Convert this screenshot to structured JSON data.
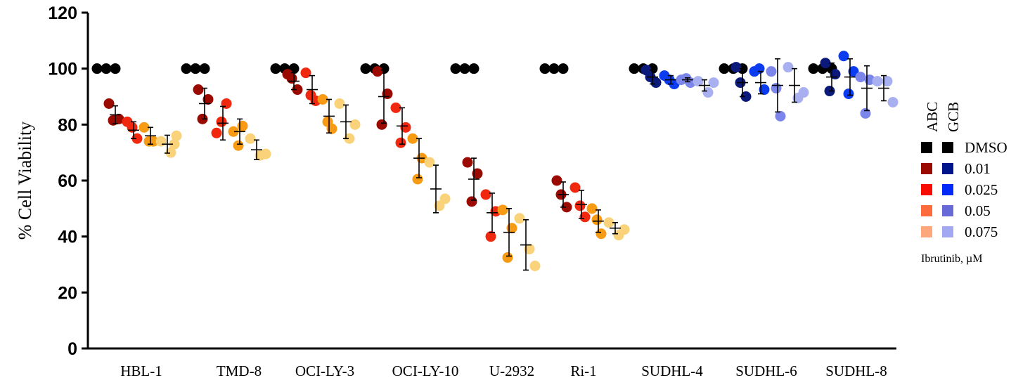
{
  "chart_data": {
    "type": "scatter",
    "ylabel": "% Cell Viability",
    "ylim": [
      0,
      120
    ],
    "yticks": [
      "0",
      "20",
      "40",
      "60",
      "80",
      "100",
      "120"
    ],
    "grid": false,
    "legend": {
      "placement": "right",
      "group_headers": [
        "ABC",
        "GCB"
      ],
      "doses": [
        "DMSO",
        "0.01",
        "0.025",
        "0.05",
        "0.075"
      ],
      "abc_colors": [
        "#000000",
        "#9b0a00",
        "#f80b00",
        "#fd6b3c",
        "#fda77c"
      ],
      "gcb_colors": [
        "#000000",
        "#00148c",
        "#0028f8",
        "#6669d6",
        "#a3a8f2"
      ],
      "caption": "Ibrutinib, µM"
    },
    "point_colors": {
      "ABC": [
        "#000000",
        "#9b0a00",
        "#f0280f",
        "#f79a14",
        "#f9d27a"
      ],
      "GCB": [
        "#000000",
        "#0b1a7a",
        "#0b3cf0",
        "#7c86ea",
        "#a8b0ef"
      ]
    },
    "series_doses": [
      "DMSO",
      "0.01",
      "0.025",
      "0.05",
      "0.075"
    ],
    "cell_lines": [
      {
        "name": "HBL-1",
        "subtype": "ABC",
        "groups": [
          {
            "dose": "DMSO",
            "values": [
              100,
              100,
              100
            ]
          },
          {
            "dose": "0.01",
            "values": [
              87.5,
              82,
              81.5
            ],
            "mean": 83.5,
            "err": 3.2
          },
          {
            "dose": "0.025",
            "values": [
              81,
              75,
              79
            ],
            "mean": 78,
            "err": 3
          },
          {
            "dose": "0.05",
            "values": [
              79,
              74,
              74
            ],
            "mean": 76,
            "err": 3
          },
          {
            "dose": "0.075",
            "values": [
              74,
              70,
              76,
              73
            ],
            "mean": 73,
            "err": 3.2
          }
        ]
      },
      {
        "name": "TMD-8",
        "subtype": "ABC",
        "groups": [
          {
            "dose": "DMSO",
            "values": [
              100,
              100,
              100
            ]
          },
          {
            "dose": "0.01",
            "values": [
              92.5,
              89,
              82
            ],
            "mean": 87.5,
            "err": 5.5
          },
          {
            "dose": "0.025",
            "values": [
              77,
              87.5,
              81
            ],
            "mean": 80.5,
            "err": 6
          },
          {
            "dose": "0.05",
            "values": [
              77.5,
              79.5,
              72.5
            ],
            "mean": 77.5,
            "err": 4.5
          },
          {
            "dose": "0.075",
            "values": [
              75,
              69,
              69.5
            ],
            "mean": 71,
            "err": 3.5
          }
        ]
      },
      {
        "name": "OCI-LY-3",
        "subtype": "ABC",
        "groups": [
          {
            "dose": "DMSO",
            "values": [
              100,
              100,
              100
            ]
          },
          {
            "dose": "0.01",
            "values": [
              98,
              92.5,
              96.5
            ],
            "mean": 95.5,
            "err": 3
          },
          {
            "dose": "0.025",
            "values": [
              98.5,
              88.5,
              90.5
            ],
            "mean": 92.5,
            "err": 5
          },
          {
            "dose": "0.05",
            "values": [
              89,
              78.5,
              81
            ],
            "mean": 83,
            "err": 6
          },
          {
            "dose": "0.075",
            "values": [
              87.5,
              75,
              80
            ],
            "mean": 81,
            "err": 6
          }
        ]
      },
      {
        "name": "OCI-LY-10",
        "subtype": "ABC",
        "groups": [
          {
            "dose": "DMSO",
            "values": [
              100,
              100,
              100
            ]
          },
          {
            "dose": "0.01",
            "values": [
              99,
              91,
              80
            ],
            "mean": 90,
            "err": 9.5
          },
          {
            "dose": "0.025",
            "values": [
              86,
              79,
              73.5
            ],
            "mean": 79.5,
            "err": 6.5
          },
          {
            "dose": "0.05",
            "values": [
              75,
              68,
              60.5
            ],
            "mean": 68,
            "err": 7
          },
          {
            "dose": "0.075",
            "values": [
              66.5,
              51,
              53.5
            ],
            "mean": 57,
            "err": 8.5
          }
        ]
      },
      {
        "name": "U-2932",
        "subtype": "ABC",
        "groups": [
          {
            "dose": "DMSO",
            "values": [
              100,
              100,
              100
            ]
          },
          {
            "dose": "0.01",
            "values": [
              66.5,
              62.5,
              52.5
            ],
            "mean": 60.5,
            "err": 7.5
          },
          {
            "dose": "0.025",
            "values": [
              55,
              49,
              40
            ],
            "mean": 48.5,
            "err": 7
          },
          {
            "dose": "0.05",
            "values": [
              49.5,
              43,
              32.5
            ],
            "mean": 41.5,
            "err": 8.5
          },
          {
            "dose": "0.075",
            "values": [
              46.5,
              35.5,
              29.5
            ],
            "mean": 37,
            "err": 9
          }
        ]
      },
      {
        "name": "Ri-1",
        "subtype": "ABC",
        "groups": [
          {
            "dose": "DMSO",
            "values": [
              100,
              100,
              100
            ]
          },
          {
            "dose": "0.01",
            "values": [
              60,
              50.5,
              55
            ],
            "mean": 55,
            "err": 4.5
          },
          {
            "dose": "0.025",
            "values": [
              57.5,
              47,
              51
            ],
            "mean": 51.5,
            "err": 5
          },
          {
            "dose": "0.05",
            "values": [
              50,
              41,
              46
            ],
            "mean": 45.5,
            "err": 4
          },
          {
            "dose": "0.075",
            "values": [
              45,
              40.5,
              42.5
            ],
            "mean": 43,
            "err": 2
          }
        ]
      },
      {
        "name": "SUDHL-4",
        "subtype": "GCB",
        "groups": [
          {
            "dose": "DMSO",
            "values": [
              100,
              100,
              100
            ]
          },
          {
            "dose": "0.01",
            "values": [
              99.5,
              95,
              97
            ],
            "mean": 97,
            "err": 2.5
          },
          {
            "dose": "0.025",
            "values": [
              97.5,
              94.5,
              96
            ],
            "mean": 96,
            "err": 1.5
          },
          {
            "dose": "0.05",
            "values": [
              96,
              95,
              96.5
            ],
            "mean": 96,
            "err": 0.7
          },
          {
            "dose": "0.075",
            "values": [
              95.5,
              91.5,
              95
            ],
            "mean": 94,
            "err": 2
          }
        ]
      },
      {
        "name": "SUDHL-6",
        "subtype": "GCB",
        "groups": [
          {
            "dose": "DMSO",
            "values": [
              100,
              100,
              100
            ]
          },
          {
            "dose": "0.01",
            "values": [
              100.5,
              90,
              95
            ],
            "mean": 95,
            "err": 5
          },
          {
            "dose": "0.025",
            "values": [
              99,
              92.5,
              100
            ],
            "mean": 95,
            "err": 4
          },
          {
            "dose": "0.05",
            "values": [
              99,
              83,
              93
            ],
            "mean": 94,
            "err": 9.5
          },
          {
            "dose": "0.075",
            "values": [
              100.5,
              89.5,
              91.5
            ],
            "mean": 94,
            "err": 6
          }
        ]
      },
      {
        "name": "SUDHL-8",
        "subtype": "GCB",
        "groups": [
          {
            "dose": "DMSO",
            "values": [
              100,
              100,
              100
            ]
          },
          {
            "dose": "0.01",
            "values": [
              102,
              98,
              92
            ],
            "mean": 97,
            "err": 5
          },
          {
            "dose": "0.025",
            "values": [
              104.5,
              99,
              91
            ],
            "mean": 97,
            "err": 6.5
          },
          {
            "dose": "0.05",
            "values": [
              97,
              96,
              84
            ],
            "mean": 93,
            "err": 8
          },
          {
            "dose": "0.075",
            "values": [
              95.5,
              95.5,
              88
            ],
            "mean": 93,
            "err": 4.5
          }
        ]
      }
    ]
  }
}
